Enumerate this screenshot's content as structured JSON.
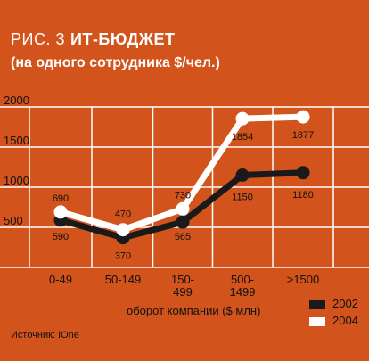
{
  "title_prefix": "РИС. 3",
  "title_main": "ИТ-БЮДЖЕТ",
  "subtitle": "(на одного сотрудника $/чел.)",
  "source": "Источник: IOne",
  "colors": {
    "background": "#d2541c",
    "series_2002": "#1a1a1a",
    "series_2004": "#ffffff",
    "gridlines": "#ffffff",
    "text": "#111111"
  },
  "chart_data": {
    "type": "line",
    "title": "ИТ-БЮДЖЕТ",
    "subtitle": "(на одного сотрудника $/чел.)",
    "xlabel": "оборот компании ($ млн)",
    "ylabel": "",
    "categories": [
      "0-49",
      "50-149",
      "150-499",
      "500-1499",
      ">1500"
    ],
    "category_labels": [
      [
        "0-49"
      ],
      [
        "50-149"
      ],
      [
        "150-",
        "499"
      ],
      [
        "500-",
        "1499"
      ],
      [
        ">1500"
      ]
    ],
    "ylim": [
      0,
      2000
    ],
    "yticks": [
      500,
      1000,
      1500,
      2000
    ],
    "grid": true,
    "legend_position": "bottom-right",
    "series": [
      {
        "name": "2002",
        "values": [
          590,
          370,
          565,
          1150,
          1180
        ],
        "labels": [
          "590",
          "370",
          "565",
          "1150",
          "1180"
        ]
      },
      {
        "name": "2004",
        "values": [
          690,
          470,
          730,
          1854,
          1877
        ],
        "labels": [
          "690",
          "470",
          "730",
          "1854",
          "1877"
        ]
      }
    ]
  }
}
